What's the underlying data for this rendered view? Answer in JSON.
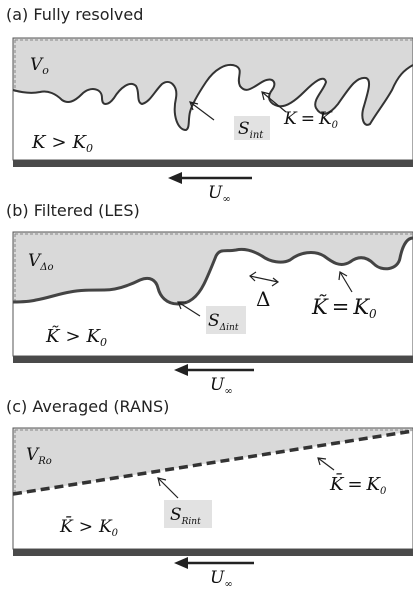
{
  "panels": [
    {
      "caption": "(a) Fully resolved",
      "volume": {
        "main": "V",
        "sub": "o"
      },
      "interface": {
        "main": "S",
        "sub": "int"
      },
      "iso_label": {
        "lhs": "K",
        "rel": "=",
        "rhs": "K",
        "rhs_sub": "0"
      },
      "region_label": {
        "lhs": "K",
        "rel": ">",
        "rhs": "K",
        "rhs_sub": "0"
      },
      "velocity": {
        "main": "U",
        "sub": "∞"
      }
    },
    {
      "caption": "(b) Filtered (LES)",
      "volume": {
        "main": "V",
        "sub": "Δo"
      },
      "interface": {
        "main": "S",
        "sub": "Δint"
      },
      "filter_width": "Δ",
      "iso_label": {
        "lhs": "K̃",
        "rel": "=",
        "rhs": "K",
        "rhs_sub": "0"
      },
      "region_label": {
        "lhs": "K̃",
        "rel": ">",
        "rhs": "K",
        "rhs_sub": "0"
      },
      "velocity": {
        "main": "U",
        "sub": "∞"
      }
    },
    {
      "caption": "(c) Averaged (RANS)",
      "volume": {
        "main": "V",
        "sub": "Ro"
      },
      "interface": {
        "main": "S",
        "sub": "Rint"
      },
      "iso_label": {
        "lhs": "K̄",
        "rel": "=",
        "rhs": "K",
        "rhs_sub": "0"
      },
      "region_label": {
        "lhs": "K̄",
        "rel": ">",
        "rhs": "K",
        "rhs_sub": "0"
      },
      "velocity": {
        "main": "U",
        "sub": "∞"
      }
    }
  ],
  "colors": {
    "shade": "#d9d9d9",
    "wall": "#4a4a4a",
    "interface": "#333333",
    "label_box": "#e2e2e2"
  }
}
